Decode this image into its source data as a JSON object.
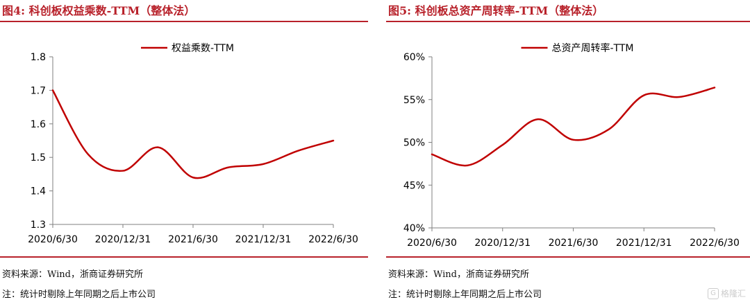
{
  "left": {
    "title": "图4:  科创板权益乘数-TTM（整体法）",
    "source": "资料来源：Wind，浙商证券研究所",
    "note": "注：统计时剔除上年同期之后上市公司"
  },
  "right": {
    "title": "图5:  科创板总资产周转率-TTM（整体法）",
    "source": "资料来源：Wind，浙商证券研究所",
    "note": "注：统计时剔除上年同期之后上市公司"
  },
  "watermark": {
    "text": "格隆汇",
    "icon": "G"
  },
  "colors": {
    "accent": "#b8212a",
    "line": "#c00000"
  },
  "chart_data": [
    {
      "type": "line",
      "ylim": [
        1.3,
        1.8
      ],
      "yticks": [
        1.3,
        1.4,
        1.5,
        1.6,
        1.7,
        1.8
      ],
      "ytick_labels": [
        "1.3",
        "1.4",
        "1.5",
        "1.6",
        "1.7",
        "1.8"
      ],
      "xlim": [
        0,
        8
      ],
      "xticks": [
        0,
        2,
        4,
        6,
        8
      ],
      "xtick_labels": [
        "2020/6/30",
        "2020/12/31",
        "2021/6/30",
        "2021/12/31",
        "2022/6/30"
      ],
      "legend_position": "top-center",
      "series": [
        {
          "name": "权益乘数-TTM",
          "x": [
            0,
            1,
            2,
            3,
            4,
            5,
            6,
            7,
            8
          ],
          "y": [
            1.7,
            1.51,
            1.46,
            1.53,
            1.44,
            1.47,
            1.48,
            1.52,
            1.55
          ]
        }
      ]
    },
    {
      "type": "line",
      "ylim": [
        40,
        60
      ],
      "yticks": [
        40,
        45,
        50,
        55,
        60
      ],
      "ytick_labels": [
        "40%",
        "45%",
        "50%",
        "55%",
        "60%"
      ],
      "xlim": [
        0,
        8
      ],
      "xticks": [
        0,
        2,
        4,
        6,
        8
      ],
      "xtick_labels": [
        "2020/6/30",
        "2020/12/31",
        "2021/6/30",
        "2021/12/31",
        "2022/6/30"
      ],
      "legend_position": "top-center",
      "series": [
        {
          "name": "总资产周转率-TTM",
          "x": [
            0,
            1,
            2,
            3,
            4,
            5,
            6,
            7,
            8
          ],
          "y": [
            48.6,
            47.3,
            49.7,
            52.7,
            50.3,
            51.5,
            55.5,
            55.3,
            56.4
          ]
        }
      ]
    }
  ]
}
